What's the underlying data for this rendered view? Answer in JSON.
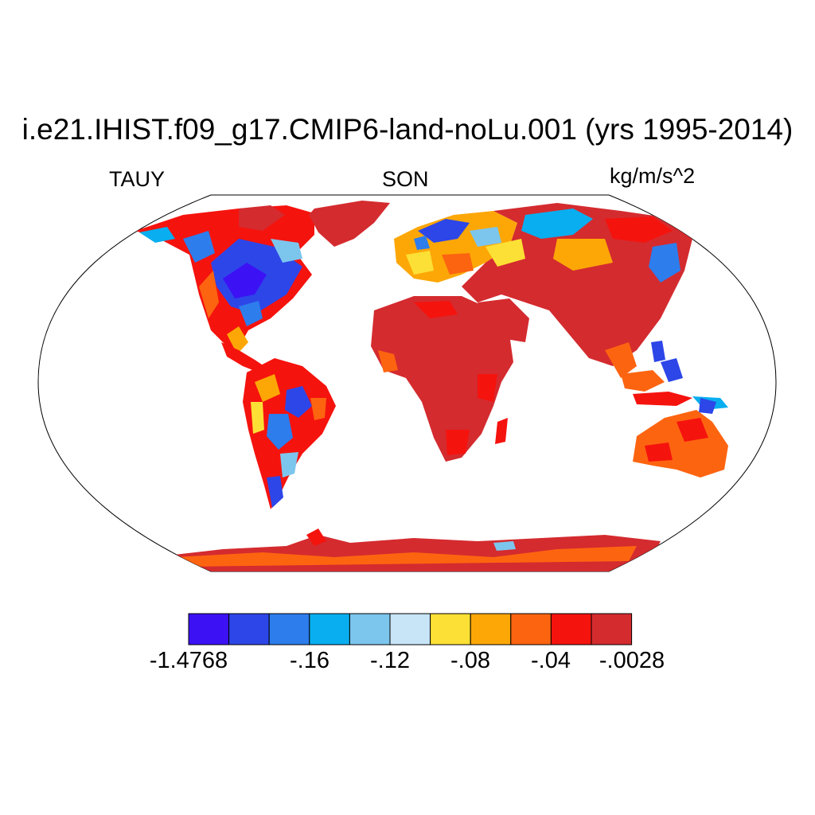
{
  "title": "i.e21.IHIST.f09_g17.CMIP6-land-noLu.001 (yrs 1995-2014)",
  "left_label": "TAUY",
  "center_label": "SON",
  "units": "kg/m/s^2",
  "colors": {
    "c1": "#3c12f5",
    "c2": "#2d46e8",
    "c3": "#2d7ded",
    "c4": "#08aef0",
    "c5": "#7cc6ee",
    "c6": "#c7e5f6",
    "c7": "#fde035",
    "c8": "#fda706",
    "c9": "#fd6410",
    "c10": "#f5130e",
    "c11": "#d42b2f"
  },
  "colorbar": {
    "labels": [
      "-1.4768",
      "-.16",
      "-.12",
      "-.08",
      "-.04",
      "-.0028"
    ]
  }
}
